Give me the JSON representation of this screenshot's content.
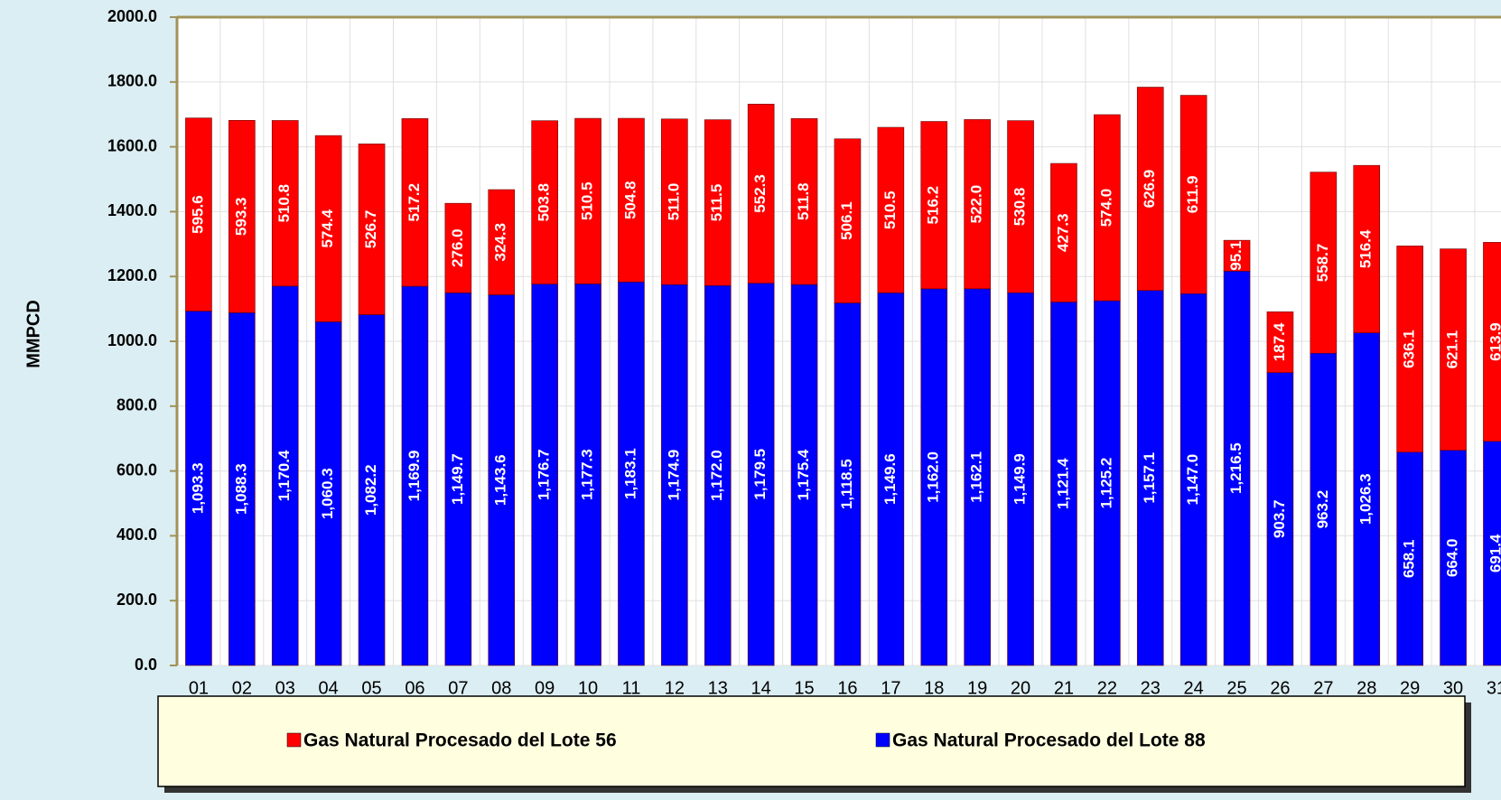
{
  "chart_data": {
    "type": "stacked-bar",
    "y_label": "MMPCD",
    "categories": [
      "01",
      "02",
      "03",
      "04",
      "05",
      "06",
      "07",
      "08",
      "09",
      "10",
      "11",
      "12",
      "13",
      "14",
      "15",
      "16",
      "17",
      "18",
      "19",
      "20",
      "21",
      "22",
      "23",
      "24",
      "25",
      "26",
      "27",
      "28",
      "29",
      "30",
      "31"
    ],
    "series": [
      {
        "name": "Gas Natural Procesado del Lote 88",
        "color": "#0000ff",
        "values": [
          1093.3,
          1088.3,
          1170.4,
          1060.3,
          1082.2,
          1169.9,
          1149.7,
          1143.6,
          1176.7,
          1177.3,
          1183.1,
          1174.9,
          1172.0,
          1179.5,
          1175.4,
          1118.5,
          1149.6,
          1162.0,
          1162.1,
          1149.9,
          1121.4,
          1125.2,
          1157.1,
          1147.0,
          1216.5,
          903.7,
          963.2,
          1026.3,
          658.1,
          664.0,
          691.4
        ],
        "value_labels": [
          "1,093.3",
          "1,088.3",
          "1,170.4",
          "1,060.3",
          "1,082.2",
          "1,169.9",
          "1,149.7",
          "1,143.6",
          "1,176.7",
          "1,177.3",
          "1,183.1",
          "1,174.9",
          "1,172.0",
          "1,179.5",
          "1,175.4",
          "1,118.5",
          "1,149.6",
          "1,162.0",
          "1,162.1",
          "1,149.9",
          "1,121.4",
          "1,125.2",
          "1,157.1",
          "1,147.0",
          "1,216.5",
          "903.7",
          "963.2",
          "1,026.3",
          "658.1",
          "664.0",
          "691.4"
        ]
      },
      {
        "name": "Gas Natural Procesado del Lote 56",
        "color": "#ff0000",
        "values": [
          595.6,
          593.3,
          510.8,
          574.4,
          526.7,
          517.2,
          276.0,
          324.3,
          503.8,
          510.5,
          504.8,
          511.0,
          511.5,
          552.3,
          511.8,
          506.1,
          510.5,
          516.2,
          522.0,
          530.8,
          427.3,
          574.0,
          626.9,
          611.9,
          95.1,
          187.4,
          558.7,
          516.4,
          636.1,
          621.1,
          613.9
        ],
        "value_labels": [
          "595.6",
          "593.3",
          "510.8",
          "574.4",
          "526.7",
          "517.2",
          "276.0",
          "324.3",
          "503.8",
          "510.5",
          "504.8",
          "511.0",
          "511.5",
          "552.3",
          "511.8",
          "506.1",
          "510.5",
          "516.2",
          "522.0",
          "530.8",
          "427.3",
          "574.0",
          "626.9",
          "611.9",
          "95.1",
          "187.4",
          "558.7",
          "516.4",
          "636.1",
          "621.1",
          "613.9"
        ]
      }
    ],
    "ylim": [
      0,
      2000
    ],
    "yticks": [
      {
        "value": 0,
        "label": "0.0"
      },
      {
        "value": 200,
        "label": "200.0"
      },
      {
        "value": 400,
        "label": "400.0"
      },
      {
        "value": 600,
        "label": "600.0"
      },
      {
        "value": 800,
        "label": "800.0"
      },
      {
        "value": 1000,
        "label": "1000.0"
      },
      {
        "value": 1200,
        "label": "1200.0"
      },
      {
        "value": 1400,
        "label": "1400.0"
      },
      {
        "value": 1600,
        "label": "1600.0"
      },
      {
        "value": 1800,
        "label": "1800.0"
      },
      {
        "value": 2000,
        "label": "2000.0"
      }
    ],
    "grid": true
  }
}
